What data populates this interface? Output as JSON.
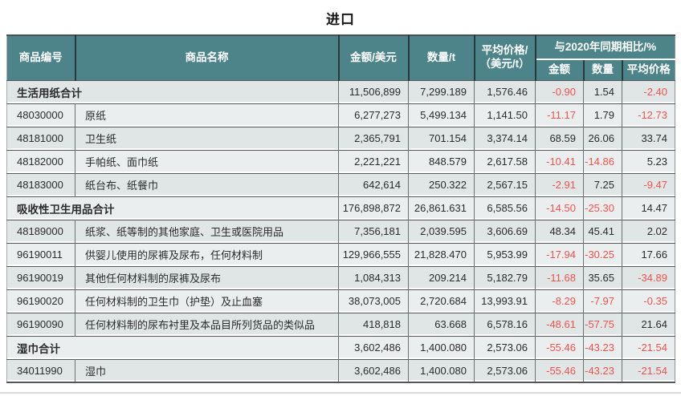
{
  "title": "进口",
  "colors": {
    "header_bg": "#4d8489",
    "header_text": "#ffffff",
    "negative_value": "#ee534f",
    "positive_value": "#2b2b2b",
    "row_odd_bg": "#e0e5e6",
    "row_even_bg": "#ebeeee"
  },
  "table": {
    "headers": {
      "code": "商品编号",
      "name": "商品名称",
      "amount": "金额/美元",
      "quantity": "数量/t",
      "avg_price_line1": "平均价格/",
      "avg_price_line2": "（美元/t）",
      "yoy_group": "与2020年同期相比/%",
      "yoy_amount": "金额",
      "yoy_quantity": "数量",
      "yoy_avg_price": "平均价格"
    },
    "rows": [
      {
        "total": true,
        "code": "",
        "name": "生活用纸合计",
        "amount": "11,506,899",
        "quantity": "7,299.189",
        "avg_price": "1,576.46",
        "yoy_amount": "-0.90",
        "yoy_quantity": "1.54",
        "yoy_avg_price": "-2.40"
      },
      {
        "total": false,
        "code": "48030000",
        "name": "原纸",
        "amount": "6,277,273",
        "quantity": "5,499.134",
        "avg_price": "1,141.50",
        "yoy_amount": "-11.17",
        "yoy_quantity": "1.79",
        "yoy_avg_price": "-12.73"
      },
      {
        "total": false,
        "code": "48181000",
        "name": "卫生纸",
        "amount": "2,365,791",
        "quantity": "701.154",
        "avg_price": "3,374.14",
        "yoy_amount": "68.59",
        "yoy_quantity": "26.06",
        "yoy_avg_price": "33.74"
      },
      {
        "total": false,
        "code": "48182000",
        "name": "手帕纸、面巾纸",
        "amount": "2,221,221",
        "quantity": "848.579",
        "avg_price": "2,617.58",
        "yoy_amount": "-10.41",
        "yoy_quantity": "-14.86",
        "yoy_avg_price": "5.23"
      },
      {
        "total": false,
        "code": "48183000",
        "name": "纸台布、纸餐巾",
        "amount": "642,614",
        "quantity": "250.322",
        "avg_price": "2,567.15",
        "yoy_amount": "-2.91",
        "yoy_quantity": "7.25",
        "yoy_avg_price": "-9.47"
      },
      {
        "total": true,
        "code": "",
        "name": "吸收性卫生用品合计",
        "amount": "176,898,872",
        "quantity": "26,861.631",
        "avg_price": "6,585.56",
        "yoy_amount": "-14.50",
        "yoy_quantity": "-25.30",
        "yoy_avg_price": "14.47"
      },
      {
        "total": false,
        "code": "48189000",
        "name": "纸浆、纸等制的其他家庭、卫生或医院用品",
        "amount": "7,356,181",
        "quantity": "2,039.595",
        "avg_price": "3,606.69",
        "yoy_amount": "48.34",
        "yoy_quantity": "45.41",
        "yoy_avg_price": "2.02"
      },
      {
        "total": false,
        "code": "96190011",
        "name": "供婴儿使用的尿裤及尿布，任何材料制",
        "amount": "129,966,555",
        "quantity": "21,828.470",
        "avg_price": "5,953.99",
        "yoy_amount": "-17.94",
        "yoy_quantity": "-30.25",
        "yoy_avg_price": "17.66"
      },
      {
        "total": false,
        "code": "96190019",
        "name": "其他任何材料制的尿裤及尿布",
        "amount": "1,084,313",
        "quantity": "209.214",
        "avg_price": "5,182.79",
        "yoy_amount": "-11.68",
        "yoy_quantity": "35.65",
        "yoy_avg_price": "-34.89"
      },
      {
        "total": false,
        "code": "96190020",
        "name": "任何材料制的卫生巾（护垫）及止血塞",
        "amount": "38,073,005",
        "quantity": "2,720.684",
        "avg_price": "13,993.91",
        "yoy_amount": "-8.29",
        "yoy_quantity": "-7.97",
        "yoy_avg_price": "-0.35"
      },
      {
        "total": false,
        "code": "96190090",
        "name": "任何材料制的尿布衬里及本品目所列货品的类似品",
        "amount": "418,818",
        "quantity": "63.668",
        "avg_price": "6,578.16",
        "yoy_amount": "-48.61",
        "yoy_quantity": "-57.75",
        "yoy_avg_price": "21.64"
      },
      {
        "total": true,
        "code": "",
        "name": "湿巾合计",
        "amount": "3,602,486",
        "quantity": "1,400.080",
        "avg_price": "2,573.06",
        "yoy_amount": "-55.46",
        "yoy_quantity": "-43.23",
        "yoy_avg_price": "-21.54"
      },
      {
        "total": false,
        "code": "34011990",
        "name": "湿巾",
        "amount": "3,602,486",
        "quantity": "1,400.080",
        "avg_price": "2,573.06",
        "yoy_amount": "-55.46",
        "yoy_quantity": "-43.23",
        "yoy_avg_price": "-21.54"
      }
    ]
  }
}
